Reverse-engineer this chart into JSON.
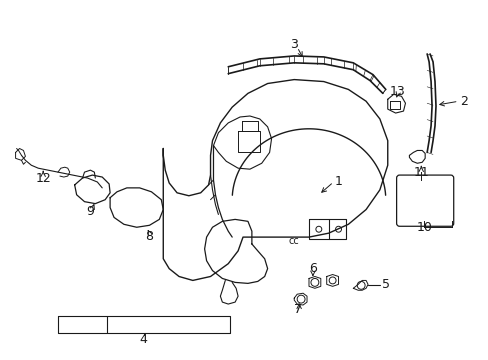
{
  "background_color": "#ffffff",
  "line_color": "#1a1a1a",
  "figsize": [
    4.89,
    3.6
  ],
  "dpi": 100
}
